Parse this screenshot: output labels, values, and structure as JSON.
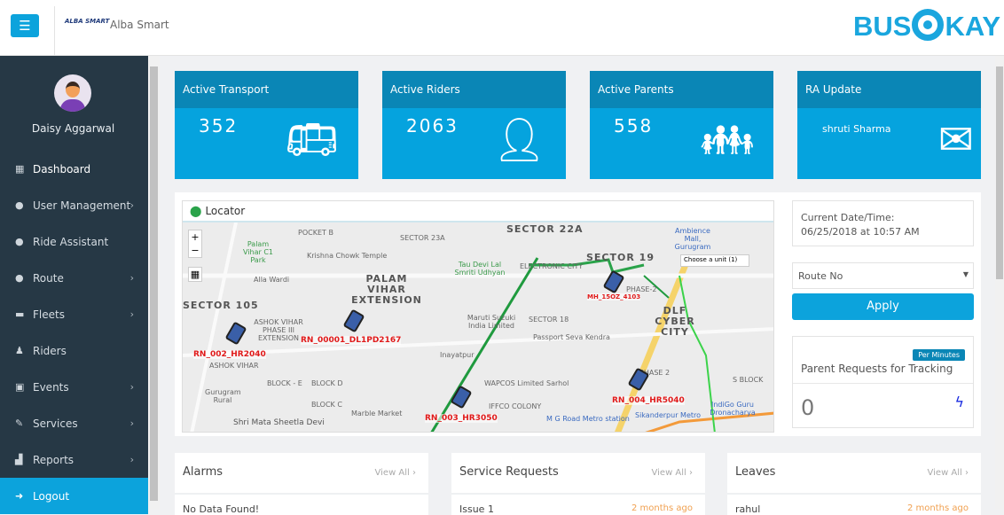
{
  "header": {
    "menu_icon": "hamburger-icon",
    "org_logo_text": "ALBA SMART",
    "org_name": "Alba Smart",
    "brand_left": "BUS",
    "brand_right": "KAY"
  },
  "sidebar": {
    "user_name": "Daisy Aggarwal",
    "items": [
      {
        "label": "Dashboard",
        "icon": "grid-icon",
        "chevron": false
      },
      {
        "label": "User Management",
        "icon": "user-icon",
        "chevron": true
      },
      {
        "label": "Ride Assistant",
        "icon": "users-icon",
        "chevron": false
      },
      {
        "label": "Route",
        "icon": "user-icon",
        "chevron": true
      },
      {
        "label": "Fleets",
        "icon": "car-icon",
        "chevron": true
      },
      {
        "label": "Riders",
        "icon": "person-icon",
        "chevron": false
      },
      {
        "label": "Events",
        "icon": "calendar-icon",
        "chevron": true
      },
      {
        "label": "Services",
        "icon": "wrench-icon",
        "chevron": true
      },
      {
        "label": "Reports",
        "icon": "chart-icon",
        "chevron": true
      },
      {
        "label": "Logout",
        "icon": "logout-icon",
        "chevron": false
      }
    ]
  },
  "cards": [
    {
      "title": "Active Transport",
      "value": "352",
      "icon": "bus-icon"
    },
    {
      "title": "Active Riders",
      "value": "2063",
      "icon": "rider-icon"
    },
    {
      "title": "Active Parents",
      "value": "558",
      "icon": "parent-child-icon"
    },
    {
      "title": "RA Update",
      "value": "shruti Sharma",
      "icon": "envelope-icon"
    }
  ],
  "map": {
    "title": "Locator",
    "unit_select": "Choose a unit (1)",
    "places": [
      "POCKET B",
      "SECTOR 23A",
      "SECTOR 22A",
      "Palam Vihar C1 Park",
      "Krishna Chowk Temple",
      "Tau Devi Lal Smriti Udhyan",
      "ELECTRONIC CITY",
      "SECTOR 19",
      "Ambience Mall, Gurugram",
      "Alla Wardi",
      "PALAM VIHAR EXTENSION",
      "PHASE-2",
      "DLF CYBER CITY",
      "SECTOR 105",
      "Maruti Suzuki India Limited",
      "SECTOR 18",
      "Passport Seva Kendra",
      "ASHOK VIHAR PHASE III EXTENSION",
      "ASHOK VIHAR",
      "Inayatpur",
      "BLOCK - E",
      "BLOCK D",
      "WAPCOS Limited",
      "Sarhol",
      "PHASE 2",
      "S BLOCK",
      "Gurugram Rural",
      "BLOCK C",
      "IFFCO COLONY",
      "Marble Market",
      "M G Road Metro station",
      "Sikanderpur Metro",
      "IndiGo Guru Dronacharya",
      "Shri Mata Sheetla Devi"
    ],
    "buses": [
      "RN_00001_DL1PD2167",
      "RN_002_HR2040",
      "MH_15OZ_4103",
      "RN_003_HR3050",
      "RN_004_HR5040"
    ]
  },
  "side": {
    "datetime_label": "Current Date/Time:",
    "datetime_value": "06/25/2018 at 10:57 AM",
    "route_select": "Route No",
    "apply": "Apply",
    "per_minutes": "Per Minutes",
    "requests_title": "Parent Requests for Tracking",
    "requests_count": "0"
  },
  "bottom": [
    {
      "title": "Alarms",
      "view_all": "View All ›",
      "row": "No Data Found!",
      "ago": ""
    },
    {
      "title": "Service Requests",
      "view_all": "View All ›",
      "row": "Issue 1",
      "ago": "2 months ago"
    },
    {
      "title": "Leaves",
      "view_all": "View All ›",
      "row": "rahul",
      "ago": "2 months ago"
    }
  ],
  "colors": {
    "accent": "#0ca3dc",
    "card_header": "#0a86b6",
    "sidebar": "#263845",
    "bus_label": "#e01a1a",
    "route": "#1f9a3e"
  }
}
